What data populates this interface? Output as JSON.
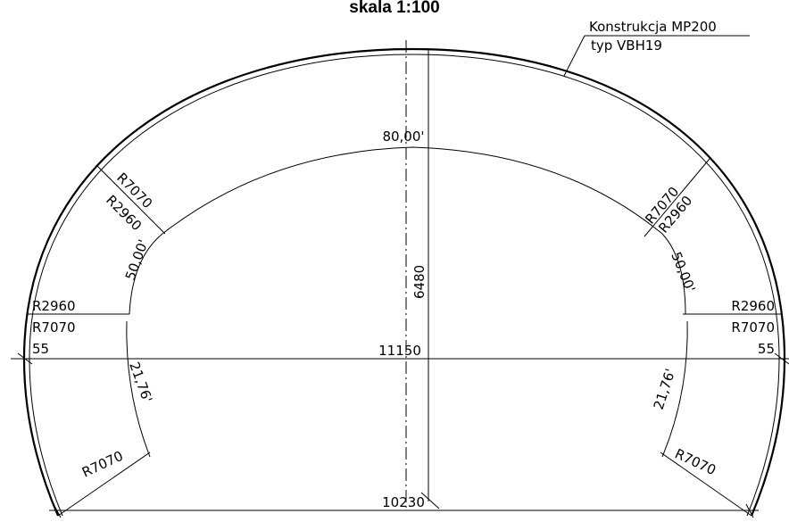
{
  "title": "skala 1:100",
  "label": {
    "line1": "Konstrukcja MP200",
    "line2": "typ VBH19"
  },
  "dimensions": {
    "crown_angle": "80,00'",
    "left_upper_r1": "R7070",
    "left_upper_r2": "R2960",
    "left_upper_angle": "50,00'",
    "right_upper_r1": "R7070",
    "right_upper_r2": "R2960",
    "right_upper_angle": "50,00'",
    "height": "6480",
    "left_mid_r1": "R2960",
    "left_mid_r2": "R7070",
    "left_mid_offset": "55",
    "right_mid_r1": "R2960",
    "right_mid_r2": "R7070",
    "right_mid_offset": "55",
    "span": "11150",
    "left_lower_angle": "21,76'",
    "right_lower_angle": "21,76'",
    "left_lower_r": "R7070",
    "right_lower_r": "R7070",
    "base_width": "10230"
  }
}
